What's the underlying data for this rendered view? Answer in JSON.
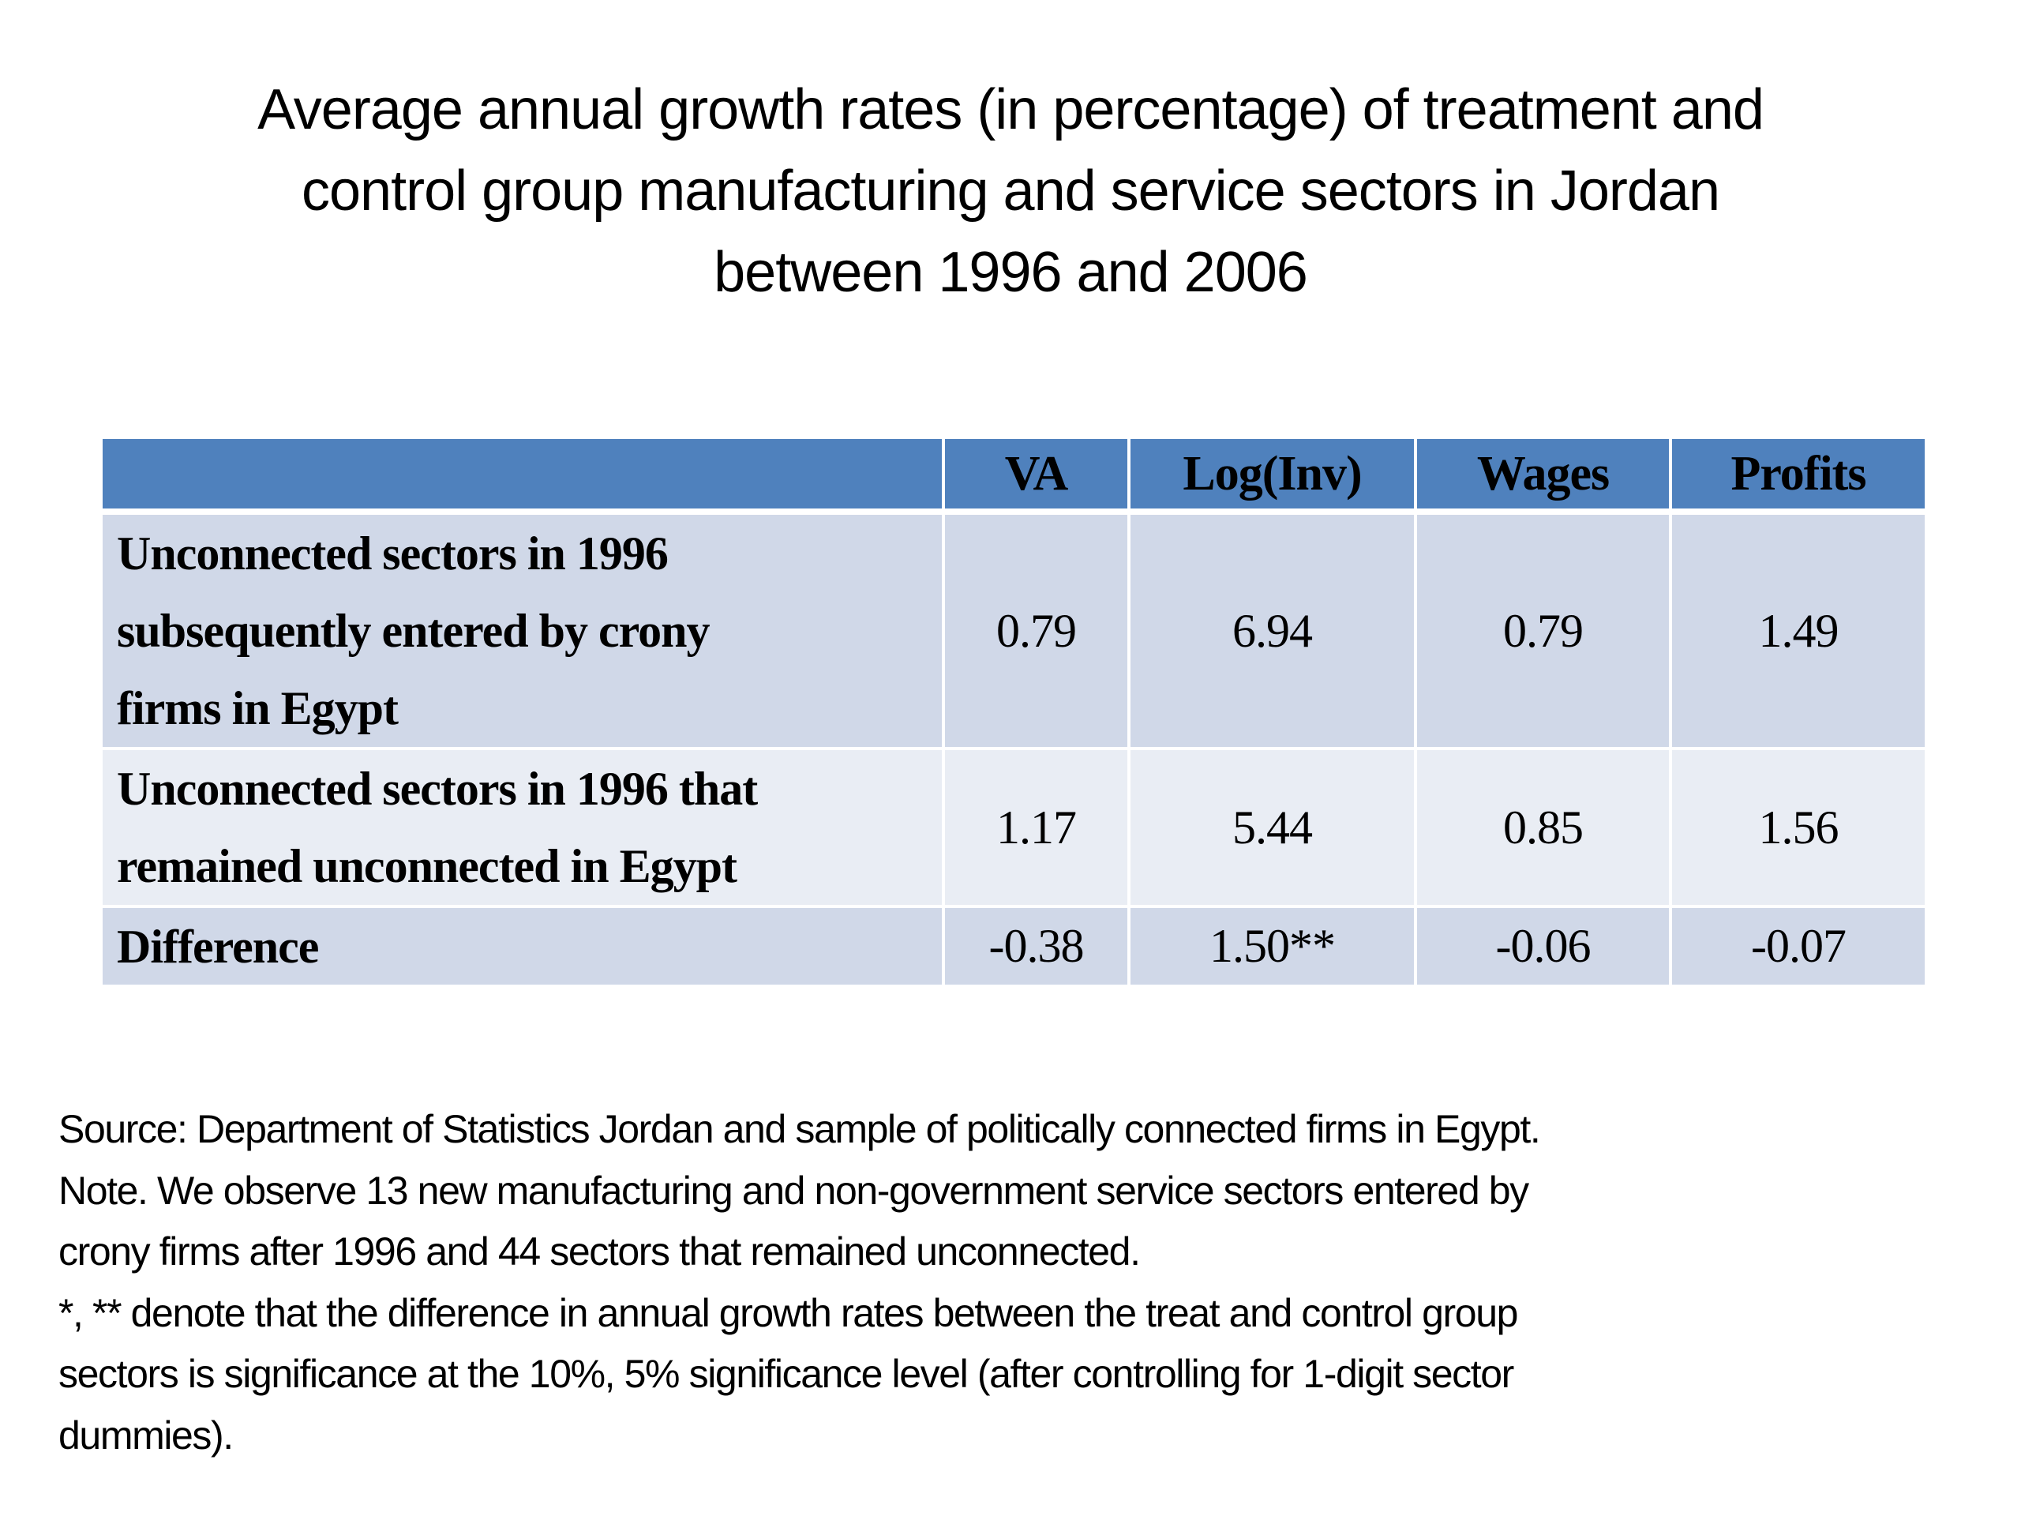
{
  "title": {
    "lines": [
      "Average annual growth rates (in percentage) of treatment and",
      "control group manufacturing and service sectors in Jordan",
      "between 1996 and 2006"
    ]
  },
  "table": {
    "columns": [
      "",
      "VA",
      "Log(Inv)",
      "Wages",
      "Profits"
    ],
    "rows": [
      {
        "label_lines": [
          "Unconnected sectors in 1996",
          "subsequently entered by crony",
          "firms in Egypt"
        ],
        "values": [
          "0.79",
          "6.94",
          "0.79",
          "1.49"
        ]
      },
      {
        "label_lines": [
          "Unconnected sectors in 1996 that",
          "remained unconnected in Egypt"
        ],
        "values": [
          "1.17",
          "5.44",
          "0.85",
          "1.56"
        ]
      },
      {
        "label_lines": [
          "Difference"
        ],
        "values": [
          "-0.38",
          "1.50**",
          "-0.06",
          "-0.07"
        ]
      }
    ],
    "colors": {
      "header": "#4f81bd",
      "row_dark": "#d0d8e8",
      "row_light": "#e9edf4"
    }
  },
  "footer": {
    "lines": [
      "Source: Department of Statistics Jordan and sample of politically connected firms in Egypt.",
      "Note. We observe 13 new manufacturing and non-government service sectors entered by",
      "crony firms after 1996 and 44 sectors that remained unconnected.",
      "*, ** denote that the difference in annual growth rates between the treat and control group",
      "sectors is significance at the 10%, 5% significance level (after controlling for 1-digit sector",
      "dummies)."
    ]
  }
}
